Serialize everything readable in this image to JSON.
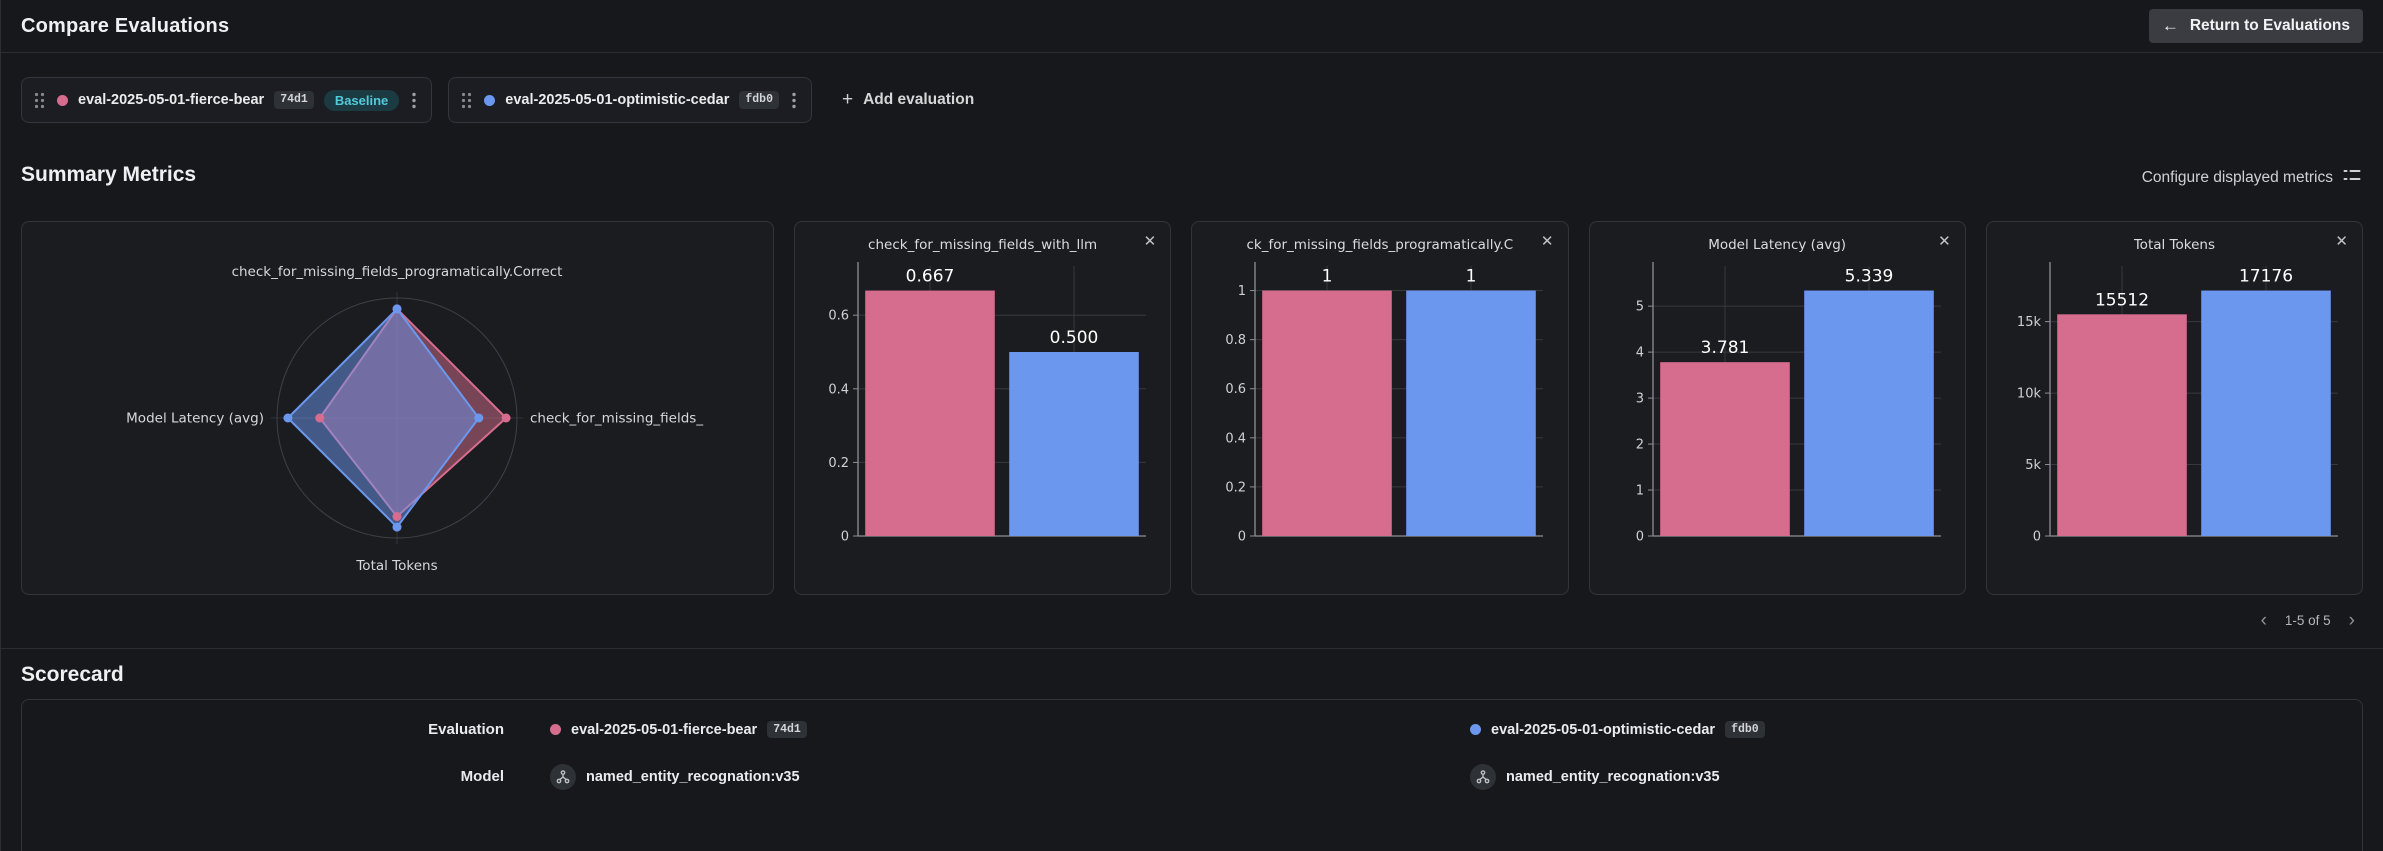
{
  "icons": {
    "back_arrow": "←",
    "plus": "+",
    "close": "✕",
    "kebab": "⋮",
    "chevron_left": "‹",
    "chevron_right": "›"
  },
  "header": {
    "title": "Compare Evaluations",
    "return_label": "Return to Evaluations"
  },
  "toolbar": {
    "evaluations": [
      {
        "name": "eval-2025-05-01-fierce-bear",
        "hash": "74d1",
        "badge": "Baseline",
        "color": "#d66d8e"
      },
      {
        "name": "eval-2025-05-01-optimistic-cedar",
        "hash": "fdb0",
        "color": "#6b97ef"
      }
    ],
    "add_label": "Add evaluation"
  },
  "summary": {
    "title": "Summary Metrics",
    "configure_label": "Configure displayed metrics",
    "pagination": {
      "range": "1-5 of 5"
    }
  },
  "chart_data": [
    {
      "type": "radar",
      "axes": [
        "check_for_missing_fields_programatically.Correct",
        "check_for_missing_fields_",
        "Total Tokens",
        "Model Latency (avg)"
      ],
      "axis_max": [
        1.1,
        0.7337,
        18893.6,
        5.8729
      ],
      "series": [
        {
          "name": "eval-2025-05-01-fierce-bear",
          "color": "#d66d8e",
          "values": [
            1,
            0.667,
            15512,
            3.781
          ]
        },
        {
          "name": "eval-2025-05-01-optimistic-cedar",
          "color": "#6b97ef",
          "values": [
            1,
            0.5,
            17176,
            5.339
          ]
        }
      ]
    },
    {
      "type": "bar",
      "title": "check_for_missing_fields_with_llm",
      "categories": [
        "eval-2025-05-01-fierce-bear",
        "eval-2025-05-01-optimistic-cedar"
      ],
      "values": [
        0.667,
        0.5
      ],
      "bar_labels": [
        "0.667",
        "0.500"
      ],
      "colors": [
        "#d66d8e",
        "#6b97ef"
      ],
      "yticks": [
        {
          "value": 0,
          "label": "0"
        },
        {
          "value": 0.2,
          "label": "0.2"
        },
        {
          "value": 0.4,
          "label": "0.4"
        },
        {
          "value": 0.6,
          "label": "0.6"
        }
      ],
      "ylim": [
        0,
        0.7337
      ]
    },
    {
      "type": "bar",
      "title": "ck_for_missing_fields_programatically.C",
      "categories": [
        "eval-2025-05-01-fierce-bear",
        "eval-2025-05-01-optimistic-cedar"
      ],
      "values": [
        1,
        1
      ],
      "bar_labels": [
        "1",
        "1"
      ],
      "colors": [
        "#d66d8e",
        "#6b97ef"
      ],
      "yticks": [
        {
          "value": 0,
          "label": "0"
        },
        {
          "value": 0.2,
          "label": "0.2"
        },
        {
          "value": 0.4,
          "label": "0.4"
        },
        {
          "value": 0.6,
          "label": "0.6"
        },
        {
          "value": 0.8,
          "label": "0.8"
        },
        {
          "value": 1,
          "label": "1"
        }
      ],
      "ylim": [
        0,
        1.1
      ]
    },
    {
      "type": "bar",
      "title": "Model Latency (avg)",
      "categories": [
        "eval-2025-05-01-fierce-bear",
        "eval-2025-05-01-optimistic-cedar"
      ],
      "values": [
        3.781,
        5.339
      ],
      "bar_labels": [
        "3.781",
        "5.339"
      ],
      "colors": [
        "#d66d8e",
        "#6b97ef"
      ],
      "yticks": [
        {
          "value": 0,
          "label": "0"
        },
        {
          "value": 1,
          "label": "1"
        },
        {
          "value": 2,
          "label": "2"
        },
        {
          "value": 3,
          "label": "3"
        },
        {
          "value": 4,
          "label": "4"
        },
        {
          "value": 5,
          "label": "5"
        }
      ],
      "ylim": [
        0,
        5.8729
      ]
    },
    {
      "type": "bar",
      "title": "Total Tokens",
      "categories": [
        "eval-2025-05-01-fierce-bear",
        "eval-2025-05-01-optimistic-cedar"
      ],
      "values": [
        15512,
        17176
      ],
      "bar_labels": [
        "15512",
        "17176"
      ],
      "colors": [
        "#d66d8e",
        "#6b97ef"
      ],
      "yticks": [
        {
          "value": 0,
          "label": "0"
        },
        {
          "value": 5000,
          "label": "5k"
        },
        {
          "value": 10000,
          "label": "10k"
        },
        {
          "value": 15000,
          "label": "15k"
        }
      ],
      "ylim": [
        0,
        18893.6
      ]
    }
  ],
  "scorecard": {
    "title": "Scorecard",
    "row_labels": {
      "evaluation": "Evaluation",
      "model": "Model"
    },
    "evaluations": [
      {
        "name": "eval-2025-05-01-fierce-bear",
        "hash": "74d1",
        "color": "#d66d8e"
      },
      {
        "name": "eval-2025-05-01-optimistic-cedar",
        "hash": "fdb0",
        "color": "#6b97ef"
      }
    ],
    "models": [
      "named_entity_recognation:v35",
      "named_entity_recognation:v35"
    ]
  }
}
